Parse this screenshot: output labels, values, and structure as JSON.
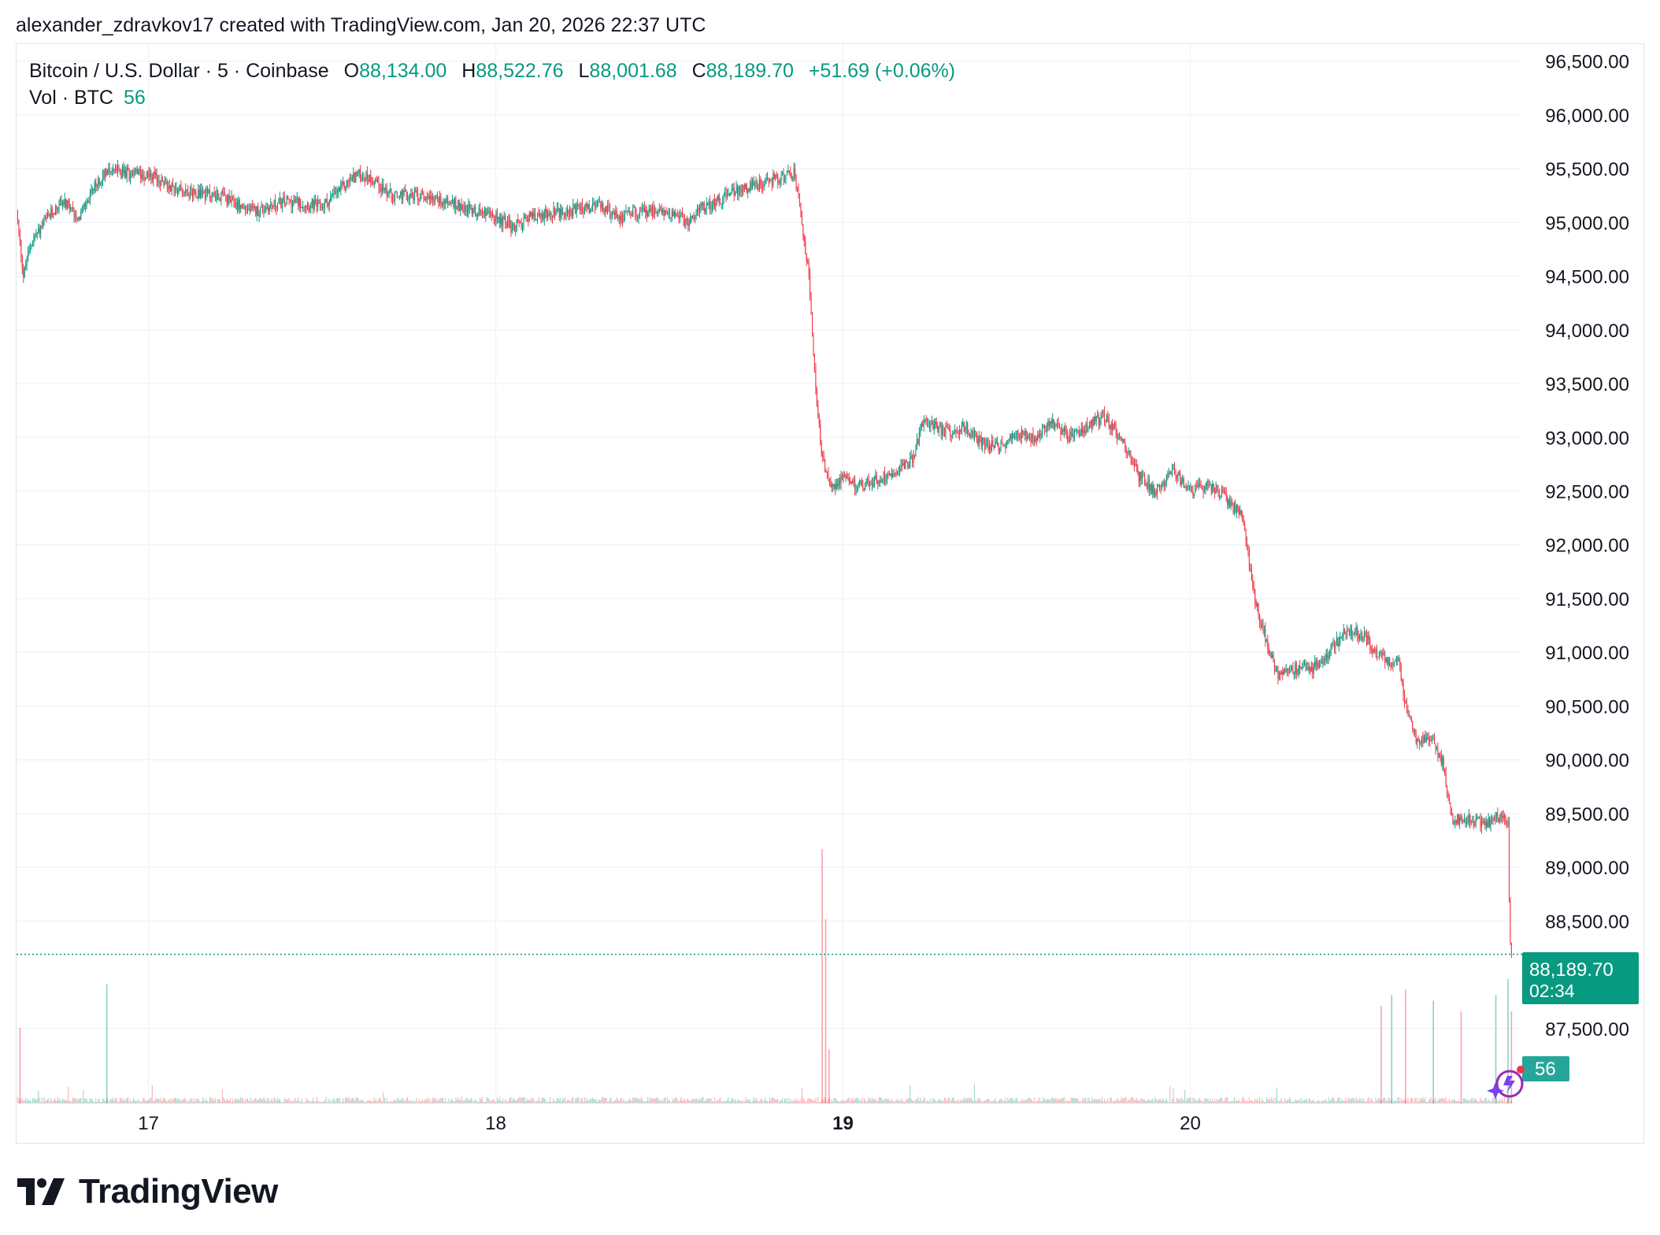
{
  "attribution": "alexander_zdravkov17 created with TradingView.com, Jan 20, 2026 22:37 UTC",
  "legend": {
    "symbol": "Bitcoin / U.S. Dollar · 5 · Coinbase",
    "open_label": "O",
    "open": "88,134.00",
    "high_label": "H",
    "high": "88,522.76",
    "low_label": "L",
    "low": "88,001.68",
    "close_label": "C",
    "close": "88,189.70",
    "change": "+51.69 (+0.06%)",
    "vol_label": "Vol · BTC",
    "vol_value": "56"
  },
  "price_badge": {
    "price": "88,189.70",
    "countdown": "02:34"
  },
  "volume_badge": "56",
  "brand": "TradingView",
  "colors": {
    "up": "#089981",
    "down": "#f23645",
    "grid": "#f0f3fa",
    "text": "#131722"
  },
  "chart_data": {
    "type": "candlestick",
    "title": "Bitcoin / U.S. Dollar · 5 · Coinbase",
    "interval": "5",
    "ylim": [
      87000,
      96600
    ],
    "y_ticks": [
      "96,500.00",
      "96,000.00",
      "95,500.00",
      "95,000.00",
      "94,500.00",
      "94,000.00",
      "93,500.00",
      "93,000.00",
      "92,500.00",
      "92,000.00",
      "91,500.00",
      "91,000.00",
      "90,500.00",
      "90,000.00",
      "89,500.00",
      "89,000.00",
      "88,500.00",
      "87,500.00"
    ],
    "y_tick_values": [
      96500,
      96000,
      95500,
      95000,
      94500,
      94000,
      93500,
      93000,
      92500,
      92000,
      91500,
      91000,
      90500,
      90000,
      89500,
      89000,
      88500,
      87500
    ],
    "x_ticks": [
      "17",
      "18",
      "19",
      "20"
    ],
    "x_tick_days": [
      17,
      18,
      19,
      20
    ],
    "x_tick_bold": [
      false,
      false,
      true,
      false
    ],
    "x_range_days": [
      16.62,
      20.94
    ],
    "grid": true,
    "last_price": 88189.7,
    "price_path": [
      [
        16.62,
        95100
      ],
      [
        16.64,
        94500
      ],
      [
        16.66,
        94800
      ],
      [
        16.7,
        95000
      ],
      [
        16.75,
        95200
      ],
      [
        16.8,
        95050
      ],
      [
        16.85,
        95350
      ],
      [
        16.88,
        95500
      ],
      [
        16.95,
        95450
      ],
      [
        17.0,
        95450
      ],
      [
        17.05,
        95350
      ],
      [
        17.1,
        95300
      ],
      [
        17.2,
        95250
      ],
      [
        17.3,
        95100
      ],
      [
        17.4,
        95200
      ],
      [
        17.5,
        95150
      ],
      [
        17.55,
        95300
      ],
      [
        17.6,
        95450
      ],
      [
        17.65,
        95400
      ],
      [
        17.7,
        95250
      ],
      [
        17.8,
        95250
      ],
      [
        17.9,
        95150
      ],
      [
        18.0,
        95050
      ],
      [
        18.05,
        94950
      ],
      [
        18.1,
        95050
      ],
      [
        18.2,
        95100
      ],
      [
        18.3,
        95150
      ],
      [
        18.35,
        95050
      ],
      [
        18.4,
        95100
      ],
      [
        18.5,
        95100
      ],
      [
        18.55,
        95000
      ],
      [
        18.6,
        95150
      ],
      [
        18.7,
        95300
      ],
      [
        18.75,
        95350
      ],
      [
        18.8,
        95400
      ],
      [
        18.86,
        95450
      ],
      [
        18.87,
        95250
      ],
      [
        18.9,
        94550
      ],
      [
        18.92,
        93500
      ],
      [
        18.94,
        92800
      ],
      [
        18.96,
        92550
      ],
      [
        19.0,
        92600
      ],
      [
        19.05,
        92550
      ],
      [
        19.1,
        92600
      ],
      [
        19.15,
        92700
      ],
      [
        19.2,
        92800
      ],
      [
        19.23,
        93150
      ],
      [
        19.3,
        93050
      ],
      [
        19.35,
        93100
      ],
      [
        19.4,
        92950
      ],
      [
        19.45,
        92900
      ],
      [
        19.5,
        93050
      ],
      [
        19.55,
        93000
      ],
      [
        19.6,
        93150
      ],
      [
        19.65,
        93000
      ],
      [
        19.7,
        93100
      ],
      [
        19.75,
        93200
      ],
      [
        19.8,
        93000
      ],
      [
        19.85,
        92650
      ],
      [
        19.9,
        92500
      ],
      [
        19.95,
        92700
      ],
      [
        20.0,
        92500
      ],
      [
        20.05,
        92550
      ],
      [
        20.1,
        92450
      ],
      [
        20.15,
        92250
      ],
      [
        20.18,
        91600
      ],
      [
        20.2,
        91300
      ],
      [
        20.25,
        90800
      ],
      [
        20.3,
        90850
      ],
      [
        20.35,
        90850
      ],
      [
        20.4,
        91000
      ],
      [
        20.45,
        91200
      ],
      [
        20.5,
        91150
      ],
      [
        20.55,
        90950
      ],
      [
        20.6,
        90900
      ],
      [
        20.62,
        90500
      ],
      [
        20.65,
        90200
      ],
      [
        20.7,
        90150
      ],
      [
        20.73,
        89950
      ],
      [
        20.75,
        89450
      ],
      [
        20.8,
        89450
      ],
      [
        20.85,
        89400
      ],
      [
        20.9,
        89500
      ],
      [
        20.915,
        89400
      ],
      [
        20.92,
        88400
      ],
      [
        20.925,
        88189.7
      ]
    ],
    "volume_ylim": [
      0,
      2400
    ],
    "volume_spikes": [
      [
        16.63,
        700,
        false
      ],
      [
        16.88,
        1100,
        true
      ],
      [
        18.94,
        2350,
        false
      ],
      [
        18.95,
        1700,
        false
      ],
      [
        18.96,
        500,
        false
      ],
      [
        20.55,
        900,
        false
      ],
      [
        20.58,
        1000,
        true
      ],
      [
        20.62,
        1050,
        false
      ],
      [
        20.7,
        950,
        true
      ],
      [
        20.78,
        850,
        false
      ],
      [
        20.88,
        1000,
        true
      ],
      [
        20.915,
        1150,
        true
      ],
      [
        20.925,
        850,
        false
      ]
    ],
    "last_volume": 56
  }
}
